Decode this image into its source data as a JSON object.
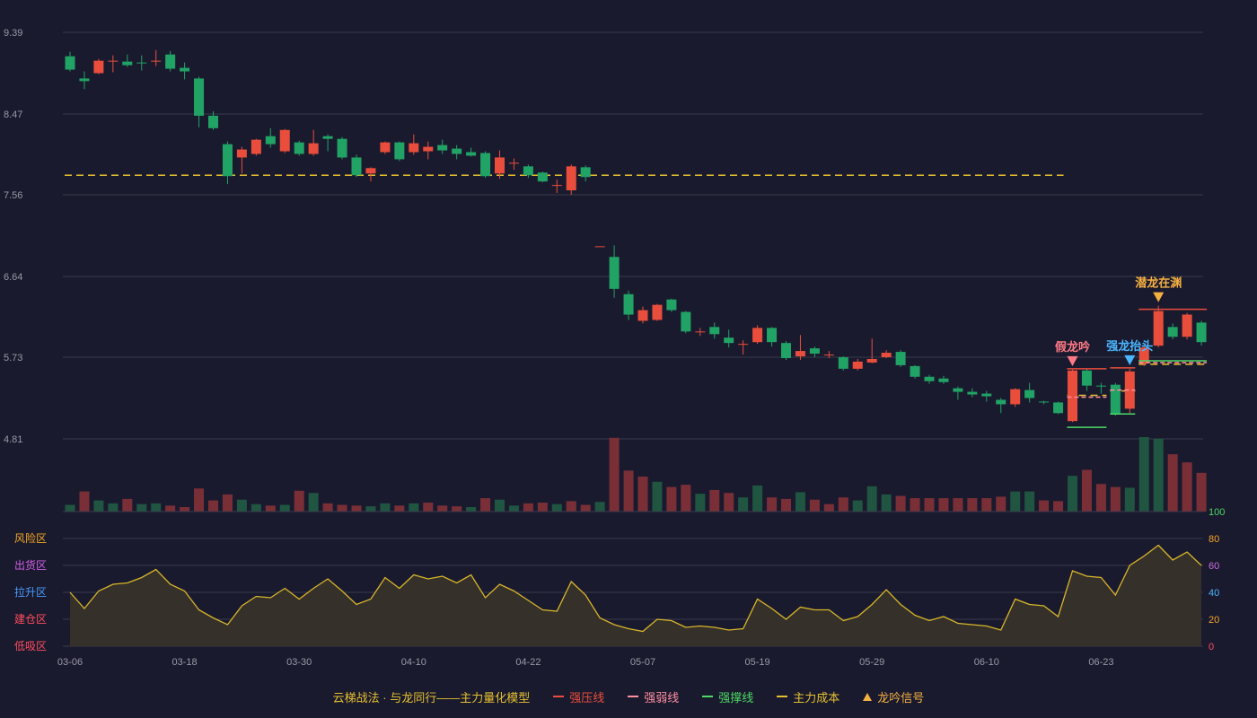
{
  "colors": {
    "up": "#e94e3c",
    "down": "#21a366",
    "up_vol": "#7a2f37",
    "down_vol": "#1f5541",
    "grid": "#3a3a4c",
    "axis_text": "#9a9aa6",
    "cost": "#e6c02e",
    "pressure": "#e94e3c",
    "weak": "#ff8fa0",
    "support": "#4cd964",
    "signal": "#f5b042",
    "sig_false": "#ff7a86",
    "sig_rise": "#4ab6ff",
    "fund_line": "#d8b52a",
    "fund_fill": "#35302a"
  },
  "chart_data": {
    "type": "candlestick",
    "price_axis": {
      "ticks": [
        "9.39",
        "8.47",
        "7.56",
        "6.64",
        "5.73",
        "4.81"
      ],
      "min": 4.81,
      "max": 9.39
    },
    "x_labels": [
      {
        "i": 0,
        "t": "03-06"
      },
      {
        "i": 8,
        "t": "03-18"
      },
      {
        "i": 16,
        "t": "03-30"
      },
      {
        "i": 24,
        "t": "04-10"
      },
      {
        "i": 32,
        "t": "04-22"
      },
      {
        "i": 40,
        "t": "05-07"
      },
      {
        "i": 48,
        "t": "05-19"
      },
      {
        "i": 56,
        "t": "05-29"
      },
      {
        "i": 64,
        "t": "06-10"
      },
      {
        "i": 72,
        "t": "06-23"
      }
    ],
    "candles": [
      [
        9.12,
        8.97,
        9.17,
        8.95
      ],
      [
        8.87,
        8.84,
        8.95,
        8.75
      ],
      [
        8.93,
        9.07,
        9.09,
        8.92
      ],
      [
        9.06,
        9.07,
        9.13,
        8.94
      ],
      [
        9.06,
        9.02,
        9.14,
        9.0
      ],
      [
        9.05,
        9.04,
        9.13,
        8.96
      ],
      [
        9.06,
        9.07,
        9.19,
        9.01
      ],
      [
        9.14,
        8.98,
        9.18,
        8.95
      ],
      [
        8.99,
        8.95,
        9.05,
        8.86
      ],
      [
        8.87,
        8.45,
        8.89,
        8.32
      ],
      [
        8.45,
        8.31,
        8.5,
        8.29
      ],
      [
        8.13,
        7.77,
        8.16,
        7.68
      ],
      [
        7.98,
        8.07,
        8.1,
        7.8
      ],
      [
        8.02,
        8.18,
        8.19,
        8.0
      ],
      [
        8.22,
        8.13,
        8.31,
        8.09
      ],
      [
        8.05,
        8.29,
        8.3,
        8.03
      ],
      [
        8.15,
        8.02,
        8.17,
        8.0
      ],
      [
        8.02,
        8.14,
        8.29,
        8.0
      ],
      [
        8.22,
        8.19,
        8.24,
        8.05
      ],
      [
        8.19,
        7.98,
        8.21,
        7.96
      ],
      [
        7.98,
        7.78,
        8.01,
        7.76
      ],
      [
        7.8,
        7.86,
        7.87,
        7.71
      ],
      [
        8.04,
        8.15,
        8.16,
        8.02
      ],
      [
        8.15,
        7.96,
        8.16,
        7.94
      ],
      [
        8.04,
        8.14,
        8.24,
        8.01
      ],
      [
        8.05,
        8.1,
        8.16,
        7.96
      ],
      [
        8.12,
        8.06,
        8.18,
        8.02
      ],
      [
        8.08,
        8.02,
        8.12,
        7.96
      ],
      [
        8.04,
        8.0,
        8.09,
        7.99
      ],
      [
        8.03,
        7.77,
        8.05,
        7.75
      ],
      [
        7.8,
        7.98,
        8.06,
        7.74
      ],
      [
        7.92,
        7.92,
        7.97,
        7.84
      ],
      [
        7.88,
        7.78,
        7.9,
        7.75
      ],
      [
        7.81,
        7.71,
        7.82,
        7.7
      ],
      [
        7.67,
        7.67,
        7.73,
        7.58
      ],
      [
        7.61,
        7.88,
        7.9,
        7.56
      ],
      [
        7.87,
        7.76,
        7.89,
        7.71
      ],
      [
        6.98,
        6.98,
        6.98,
        6.98
      ],
      [
        6.86,
        6.5,
        6.99,
        6.4
      ],
      [
        6.44,
        6.21,
        6.48,
        6.15
      ],
      [
        6.14,
        6.26,
        6.3,
        6.11
      ],
      [
        6.15,
        6.32,
        6.33,
        6.14
      ],
      [
        6.38,
        6.26,
        6.39,
        6.24
      ],
      [
        6.24,
        6.02,
        6.25,
        6.0
      ],
      [
        6.01,
        6.02,
        6.06,
        5.97
      ],
      [
        6.07,
        5.99,
        6.12,
        5.94
      ],
      [
        5.95,
        5.89,
        6.04,
        5.84
      ],
      [
        5.88,
        5.88,
        5.92,
        5.76
      ],
      [
        5.9,
        6.06,
        6.09,
        5.88
      ],
      [
        6.06,
        5.9,
        6.07,
        5.85
      ],
      [
        5.89,
        5.72,
        5.91,
        5.7
      ],
      [
        5.74,
        5.8,
        5.98,
        5.7
      ],
      [
        5.83,
        5.77,
        5.85,
        5.73
      ],
      [
        5.76,
        5.76,
        5.8,
        5.72
      ],
      [
        5.73,
        5.6,
        5.74,
        5.58
      ],
      [
        5.6,
        5.68,
        5.71,
        5.58
      ],
      [
        5.67,
        5.71,
        5.94,
        5.66
      ],
      [
        5.73,
        5.78,
        5.81,
        5.72
      ],
      [
        5.79,
        5.64,
        5.81,
        5.62
      ],
      [
        5.63,
        5.51,
        5.64,
        5.49
      ],
      [
        5.51,
        5.46,
        5.53,
        5.43
      ],
      [
        5.49,
        5.45,
        5.52,
        5.43
      ],
      [
        5.38,
        5.34,
        5.4,
        5.25
      ],
      [
        5.34,
        5.31,
        5.38,
        5.28
      ],
      [
        5.32,
        5.29,
        5.35,
        5.23
      ],
      [
        5.25,
        5.2,
        5.27,
        5.1
      ],
      [
        5.2,
        5.37,
        5.38,
        5.17
      ],
      [
        5.36,
        5.27,
        5.44,
        5.22
      ],
      [
        5.23,
        5.22,
        5.24,
        5.2
      ],
      [
        5.22,
        5.1,
        5.23,
        5.09
      ],
      [
        5.01,
        5.58,
        5.59,
        5.0
      ],
      [
        5.58,
        5.41,
        5.6,
        5.35
      ],
      [
        5.41,
        5.4,
        5.44,
        5.32
      ],
      [
        5.42,
        5.09,
        5.44,
        5.07
      ],
      [
        5.15,
        5.57,
        5.6,
        5.1
      ],
      [
        5.66,
        5.84,
        5.87,
        5.63
      ],
      [
        5.86,
        6.25,
        6.31,
        5.84
      ],
      [
        6.07,
        5.96,
        6.11,
        5.93
      ],
      [
        5.96,
        6.21,
        6.23,
        5.93
      ],
      [
        6.12,
        5.9,
        6.14,
        5.86
      ]
    ],
    "volumes": [
      [
        0.09,
        0
      ],
      [
        0.27,
        1
      ],
      [
        0.15,
        0
      ],
      [
        0.11,
        0
      ],
      [
        0.17,
        1
      ],
      [
        0.1,
        0
      ],
      [
        0.11,
        0
      ],
      [
        0.08,
        1
      ],
      [
        0.06,
        1
      ],
      [
        0.31,
        1
      ],
      [
        0.15,
        1
      ],
      [
        0.23,
        1
      ],
      [
        0.16,
        0
      ],
      [
        0.1,
        0
      ],
      [
        0.08,
        1
      ],
      [
        0.09,
        0
      ],
      [
        0.28,
        1
      ],
      [
        0.25,
        0
      ],
      [
        0.11,
        1
      ],
      [
        0.09,
        1
      ],
      [
        0.08,
        1
      ],
      [
        0.07,
        0
      ],
      [
        0.11,
        0
      ],
      [
        0.08,
        1
      ],
      [
        0.11,
        0
      ],
      [
        0.12,
        1
      ],
      [
        0.08,
        1
      ],
      [
        0.07,
        1
      ],
      [
        0.06,
        0
      ],
      [
        0.18,
        1
      ],
      [
        0.16,
        0
      ],
      [
        0.08,
        0
      ],
      [
        0.11,
        1
      ],
      [
        0.12,
        1
      ],
      [
        0.1,
        0
      ],
      [
        0.14,
        1
      ],
      [
        0.09,
        1
      ],
      [
        0.13,
        0
      ],
      [
        0.99,
        1
      ],
      [
        0.55,
        1
      ],
      [
        0.47,
        1
      ],
      [
        0.4,
        0
      ],
      [
        0.33,
        1
      ],
      [
        0.36,
        1
      ],
      [
        0.24,
        0
      ],
      [
        0.29,
        1
      ],
      [
        0.25,
        1
      ],
      [
        0.19,
        0
      ],
      [
        0.35,
        0
      ],
      [
        0.19,
        1
      ],
      [
        0.17,
        1
      ],
      [
        0.26,
        0
      ],
      [
        0.16,
        1
      ],
      [
        0.1,
        1
      ],
      [
        0.19,
        1
      ],
      [
        0.15,
        0
      ],
      [
        0.34,
        0
      ],
      [
        0.23,
        0
      ],
      [
        0.21,
        1
      ],
      [
        0.18,
        1
      ],
      [
        0.18,
        1
      ],
      [
        0.18,
        1
      ],
      [
        0.18,
        1
      ],
      [
        0.18,
        1
      ],
      [
        0.18,
        1
      ],
      [
        0.2,
        1
      ],
      [
        0.27,
        0
      ],
      [
        0.27,
        0
      ],
      [
        0.15,
        1
      ],
      [
        0.14,
        1
      ],
      [
        0.48,
        0
      ],
      [
        0.56,
        1
      ],
      [
        0.37,
        1
      ],
      [
        0.33,
        1
      ],
      [
        0.32,
        0
      ],
      [
        1.0,
        0
      ],
      [
        0.98,
        0
      ],
      [
        0.77,
        1
      ],
      [
        0.66,
        1
      ],
      [
        0.52,
        1
      ]
    ],
    "cost_segments": [
      [
        0,
        69,
        7.78
      ],
      [
        70,
        72,
        5.3
      ],
      [
        73,
        74,
        5.35
      ],
      [
        75,
        79,
        5.65
      ]
    ],
    "pressure_segments": [
      [
        70,
        72,
        5.6
      ],
      [
        73,
        74,
        5.61
      ],
      [
        75,
        79,
        6.27
      ]
    ],
    "weak_segments": [
      [
        70,
        72,
        5.28
      ],
      [
        73,
        74,
        5.36
      ],
      [
        75,
        79,
        5.67
      ]
    ],
    "support_segments": [
      [
        70,
        72,
        4.94
      ],
      [
        73,
        74,
        5.09
      ],
      [
        75,
        79,
        5.69
      ]
    ],
    "signals": [
      {
        "i": 70,
        "label": "假龙吟",
        "kind": "false"
      },
      {
        "i": 74,
        "label": "强龙抬头",
        "kind": "rise"
      },
      {
        "i": 76,
        "label": "潜龙在渊",
        "kind": "signal"
      }
    ],
    "fund_axis": {
      "ticks": [
        "100",
        "80",
        "60",
        "40",
        "20",
        "0"
      ],
      "zones": [
        "风险区",
        "出货区",
        "拉升区",
        "建仓区",
        "低吸区"
      ]
    },
    "fund_values": [
      40,
      28,
      41,
      46,
      47,
      51,
      57,
      46,
      41,
      27,
      21,
      16,
      30,
      37,
      36,
      43,
      35,
      43,
      50,
      41,
      31,
      35,
      51,
      43,
      53,
      50,
      52,
      47,
      53,
      36,
      46,
      41,
      34,
      27,
      26,
      48,
      38,
      21,
      16,
      13,
      11,
      20,
      19,
      14,
      15,
      14,
      12,
      13,
      35,
      28,
      20,
      29,
      27,
      27,
      19,
      22,
      31,
      42,
      31,
      23,
      19,
      22,
      17,
      16,
      15,
      12,
      35,
      31,
      30,
      22,
      56,
      52,
      51,
      38,
      60,
      67,
      75,
      64,
      70,
      60
    ]
  },
  "legend": {
    "title": "云梯战法 · 与龙同行——主力量化模型",
    "items": [
      {
        "name": "强压线",
        "style": "solid",
        "color": "#e94e3c"
      },
      {
        "name": "强弱线",
        "style": "dash",
        "color": "#ff8fa0"
      },
      {
        "name": "强撑线",
        "style": "solid",
        "color": "#4cd964"
      },
      {
        "name": "主力成本",
        "style": "dash",
        "color": "#e6c02e"
      },
      {
        "name": "龙吟信号",
        "style": "tri",
        "color": "#f5b042"
      }
    ]
  }
}
